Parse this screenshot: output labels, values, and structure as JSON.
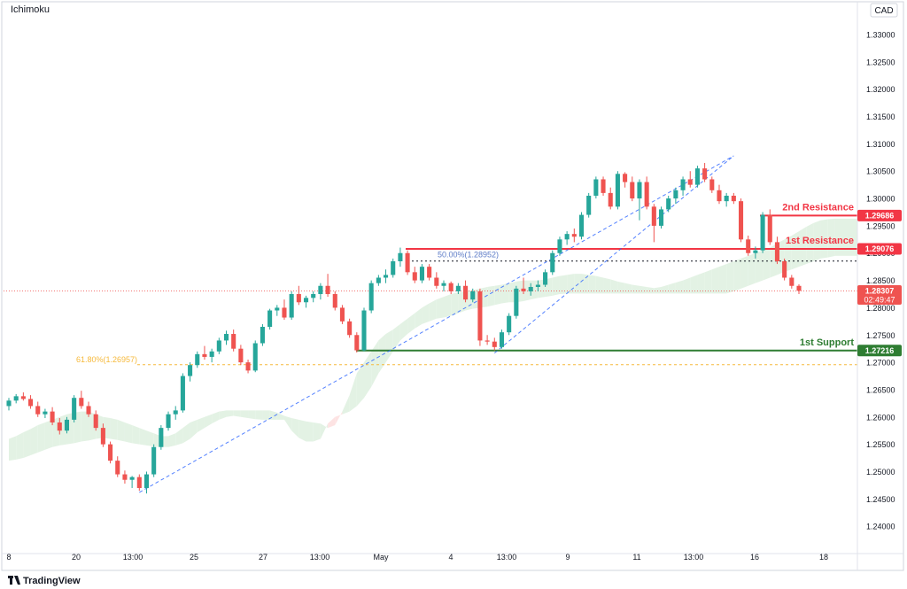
{
  "header": {
    "indicator": "Ichimoku",
    "currency": "CAD"
  },
  "footer": {
    "brand": "TradingView"
  },
  "colors": {
    "up": "#26a69a",
    "down": "#ef5350",
    "resistance": "#f23645",
    "support": "#2e7d32",
    "fib": "#f6b93b",
    "trend": "#2962ff",
    "cloud_bull": "#e3f2e4",
    "cloud_bear": "#fde3e3"
  },
  "chart_data": {
    "type": "candlestick",
    "y_axis": {
      "range": [
        1.235,
        1.336
      ],
      "ticks": [
        "1.33000",
        "1.32500",
        "1.32000",
        "1.31500",
        "1.31000",
        "1.30500",
        "1.30000",
        "1.29500",
        "1.29000",
        "1.28500",
        "1.28000",
        "1.27500",
        "1.27000",
        "1.26500",
        "1.26000",
        "1.25500",
        "1.25000",
        "1.24500",
        "1.24000"
      ]
    },
    "x_axis": {
      "ticks": [
        "8",
        "20",
        "13:00",
        "25",
        "27",
        "13:00",
        "May",
        "4",
        "13:00",
        "9",
        "11",
        "13:00",
        "16",
        "18"
      ]
    },
    "levels": {
      "resistance_2": {
        "label": "2nd Resistance",
        "price": "1.29686"
      },
      "resistance_1": {
        "label": "1st Resistance",
        "price": "1.29076"
      },
      "support_1": {
        "label": "1st Support",
        "price": "1.27216"
      },
      "fib_50": {
        "label": "50.00%(1.28952)",
        "price": 1.28952
      },
      "fib_618": {
        "label": "61.80%(1.26957)",
        "price": 1.26957
      }
    },
    "current_price": {
      "price": "1.28307",
      "countdown": "02:49:47"
    },
    "candles": [
      [
        1.262,
        1.2635,
        1.2612,
        1.263
      ],
      [
        1.263,
        1.2642,
        1.2625,
        1.2638
      ],
      [
        1.2638,
        1.2645,
        1.263,
        1.2633
      ],
      [
        1.2633,
        1.264,
        1.2615,
        1.262
      ],
      [
        1.262,
        1.2628,
        1.26,
        1.2605
      ],
      [
        1.2605,
        1.2615,
        1.2598,
        1.261
      ],
      [
        1.261,
        1.2618,
        1.2585,
        1.259
      ],
      [
        1.259,
        1.2598,
        1.2568,
        1.2575
      ],
      [
        1.2575,
        1.26,
        1.257,
        1.2595
      ],
      [
        1.2595,
        1.264,
        1.259,
        1.2635
      ],
      [
        1.2635,
        1.2648,
        1.2615,
        1.262
      ],
      [
        1.262,
        1.2628,
        1.26,
        1.2605
      ],
      [
        1.2605,
        1.2612,
        1.2575,
        1.258
      ],
      [
        1.258,
        1.2588,
        1.2545,
        1.255
      ],
      [
        1.255,
        1.2555,
        1.2515,
        1.252
      ],
      [
        1.252,
        1.2528,
        1.249,
        1.2495
      ],
      [
        1.2495,
        1.2502,
        1.2478,
        1.2485
      ],
      [
        1.2485,
        1.2492,
        1.247,
        1.249
      ],
      [
        1.249,
        1.2495,
        1.2465,
        1.247
      ],
      [
        1.247,
        1.25,
        1.246,
        1.2495
      ],
      [
        1.2495,
        1.255,
        1.249,
        1.2545
      ],
      [
        1.2545,
        1.2585,
        1.254,
        1.258
      ],
      [
        1.258,
        1.261,
        1.2575,
        1.2605
      ],
      [
        1.2605,
        1.262,
        1.2595,
        1.2612
      ],
      [
        1.2612,
        1.268,
        1.2608,
        1.2675
      ],
      [
        1.2675,
        1.27,
        1.2665,
        1.2695
      ],
      [
        1.2695,
        1.272,
        1.269,
        1.2715
      ],
      [
        1.2715,
        1.273,
        1.2705,
        1.271
      ],
      [
        1.271,
        1.2725,
        1.27,
        1.272
      ],
      [
        1.272,
        1.2745,
        1.2715,
        1.274
      ],
      [
        1.274,
        1.2758,
        1.2732,
        1.2752
      ],
      [
        1.2752,
        1.276,
        1.272,
        1.2725
      ],
      [
        1.2725,
        1.2732,
        1.2695,
        1.27
      ],
      [
        1.27,
        1.2705,
        1.268,
        1.2685
      ],
      [
        1.2685,
        1.274,
        1.2682,
        1.2735
      ],
      [
        1.2735,
        1.277,
        1.273,
        1.2765
      ],
      [
        1.2765,
        1.2798,
        1.276,
        1.2795
      ],
      [
        1.2795,
        1.2805,
        1.2785,
        1.28
      ],
      [
        1.28,
        1.2815,
        1.2778,
        1.2782
      ],
      [
        1.2782,
        1.283,
        1.2778,
        1.2825
      ],
      [
        1.2825,
        1.284,
        1.2805,
        1.281
      ],
      [
        1.281,
        1.2822,
        1.28,
        1.2818
      ],
      [
        1.2818,
        1.283,
        1.281,
        1.2825
      ],
      [
        1.2825,
        1.2845,
        1.2815,
        1.284
      ],
      [
        1.284,
        1.2862,
        1.282,
        1.2825
      ],
      [
        1.2825,
        1.283,
        1.2795,
        1.28
      ],
      [
        1.28,
        1.2805,
        1.277,
        1.2775
      ],
      [
        1.2775,
        1.278,
        1.2745,
        1.275
      ],
      [
        1.275,
        1.2755,
        1.2718,
        1.2722
      ],
      [
        1.2722,
        1.28,
        1.272,
        1.2795
      ],
      [
        1.2795,
        1.285,
        1.279,
        1.2845
      ],
      [
        1.2845,
        1.286,
        1.284,
        1.2855
      ],
      [
        1.2855,
        1.287,
        1.2845,
        1.286
      ],
      [
        1.286,
        1.289,
        1.2855,
        1.2885
      ],
      [
        1.2885,
        1.291,
        1.2875,
        1.29
      ],
      [
        1.29,
        1.2905,
        1.286,
        1.2865
      ],
      [
        1.2865,
        1.2875,
        1.2845,
        1.285
      ],
      [
        1.285,
        1.288,
        1.2845,
        1.2875
      ],
      [
        1.2875,
        1.288,
        1.285,
        1.2855
      ],
      [
        1.2855,
        1.2865,
        1.2835,
        1.284
      ],
      [
        1.284,
        1.285,
        1.283,
        1.2845
      ],
      [
        1.2845,
        1.2848,
        1.2825,
        1.283
      ],
      [
        1.283,
        1.2845,
        1.2825,
        1.284
      ],
      [
        1.284,
        1.285,
        1.281,
        1.2815
      ],
      [
        1.2815,
        1.2835,
        1.281,
        1.283
      ],
      [
        1.283,
        1.2835,
        1.273,
        1.274
      ],
      [
        1.274,
        1.275,
        1.2732,
        1.2738
      ],
      [
        1.2738,
        1.2745,
        1.2722,
        1.2728
      ],
      [
        1.2728,
        1.276,
        1.2725,
        1.2755
      ],
      [
        1.2755,
        1.279,
        1.275,
        1.2785
      ],
      [
        1.2785,
        1.284,
        1.278,
        1.2835
      ],
      [
        1.2835,
        1.2855,
        1.2825,
        1.283
      ],
      [
        1.283,
        1.2845,
        1.2822,
        1.2838
      ],
      [
        1.2838,
        1.285,
        1.283,
        1.2842
      ],
      [
        1.2842,
        1.287,
        1.2838,
        1.2865
      ],
      [
        1.2865,
        1.2905,
        1.286,
        1.29
      ],
      [
        1.29,
        1.293,
        1.2895,
        1.2925
      ],
      [
        1.2925,
        1.294,
        1.2915,
        1.2935
      ],
      [
        1.2935,
        1.2945,
        1.292,
        1.293
      ],
      [
        1.293,
        1.2975,
        1.2925,
        1.297
      ],
      [
        1.297,
        1.301,
        1.2965,
        1.3005
      ],
      [
        1.3005,
        1.304,
        1.3,
        1.3035
      ],
      [
        1.3035,
        1.304,
        1.3005,
        1.301
      ],
      [
        1.301,
        1.302,
        1.298,
        1.2985
      ],
      [
        1.2985,
        1.305,
        1.298,
        1.3045
      ],
      [
        1.3045,
        1.3048,
        1.302,
        1.303
      ],
      [
        1.303,
        1.304,
        1.2995,
        1.3
      ],
      [
        1.3,
        1.3035,
        1.296,
        1.303
      ],
      [
        1.303,
        1.304,
        1.298,
        1.2985
      ],
      [
        1.2985,
        1.299,
        1.292,
        1.295
      ],
      [
        1.295,
        1.2985,
        1.2945,
        1.298
      ],
      [
        1.298,
        1.3005,
        1.2975,
        1.3
      ],
      [
        1.3,
        1.302,
        1.299,
        1.3015
      ],
      [
        1.3015,
        1.304,
        1.3005,
        1.3035
      ],
      [
        1.3035,
        1.305,
        1.302,
        1.3025
      ],
      [
        1.3025,
        1.306,
        1.302,
        1.3055
      ],
      [
        1.3055,
        1.3065,
        1.303,
        1.3035
      ],
      [
        1.3035,
        1.304,
        1.301,
        1.3015
      ],
      [
        1.3015,
        1.3025,
        1.299,
        1.2995
      ],
      [
        1.2995,
        1.301,
        1.2985,
        1.3005
      ],
      [
        1.3005,
        1.301,
        1.299,
        1.2995
      ],
      [
        1.2995,
        1.3,
        1.292,
        1.2925
      ],
      [
        1.2925,
        1.2932,
        1.2895,
        1.29
      ],
      [
        1.29,
        1.2912,
        1.289,
        1.2905
      ],
      [
        1.2905,
        1.2975,
        1.29,
        1.297
      ],
      [
        1.297,
        1.298,
        1.2915,
        1.292
      ],
      [
        1.292,
        1.293,
        1.288,
        1.2885
      ],
      [
        1.2885,
        1.289,
        1.285,
        1.2855
      ],
      [
        1.2855,
        1.286,
        1.2835,
        1.284
      ],
      [
        1.284,
        1.2843,
        1.2825,
        1.2831
      ]
    ],
    "cloud": {
      "start_index": 0,
      "span_a": [
        1.256,
        1.2565,
        1.2572,
        1.2578,
        1.2585,
        1.259,
        1.2595,
        1.26,
        1.2605,
        1.2608,
        1.261,
        1.261,
        1.2605,
        1.26,
        1.2598,
        1.2595,
        1.259,
        1.2585,
        1.258,
        1.2575,
        1.257,
        1.2565,
        1.2565,
        1.257,
        1.258,
        1.259,
        1.2595,
        1.26,
        1.2605,
        1.261,
        1.2612,
        1.2612,
        1.2612,
        1.2612,
        1.2612,
        1.2612,
        1.2612,
        1.2608,
        1.2602,
        1.2598,
        1.2595,
        1.2592,
        1.259,
        1.2588,
        1.258,
        1.2585,
        1.261,
        1.264,
        1.268,
        1.27,
        1.272,
        1.274,
        1.2752,
        1.276,
        1.277,
        1.278,
        1.279,
        1.28,
        1.2808,
        1.2815,
        1.282,
        1.2825,
        1.2828,
        1.283,
        1.2832,
        1.2835,
        1.2838,
        1.284,
        1.2842,
        1.2845,
        1.2848,
        1.285,
        1.285,
        1.285,
        1.2852,
        1.2855,
        1.2858,
        1.286,
        1.2862,
        1.2862,
        1.286,
        1.2858,
        1.2855,
        1.2852,
        1.2848,
        1.2845,
        1.2842,
        1.284,
        1.2838,
        1.2836,
        1.2838,
        1.2842,
        1.2846,
        1.285,
        1.2855,
        1.286,
        1.2865,
        1.287,
        1.2875,
        1.288,
        1.2885,
        1.289,
        1.2895,
        1.29,
        1.2905,
        1.291,
        1.2918,
        1.2925,
        1.2932,
        1.294,
        1.2948,
        1.2955,
        1.296,
        1.2962,
        1.2963
      ],
      "span_b": [
        1.252,
        1.2522,
        1.2525,
        1.253,
        1.2535,
        1.254,
        1.2545,
        1.2548,
        1.255,
        1.2552,
        1.2555,
        1.2557,
        1.256,
        1.2562,
        1.256,
        1.2558,
        1.2555,
        1.2552,
        1.255,
        1.2548,
        1.2546,
        1.2545,
        1.2545,
        1.2548,
        1.2552,
        1.256,
        1.2572,
        1.258,
        1.2588,
        1.2595,
        1.26,
        1.2602,
        1.26,
        1.2598,
        1.2596,
        1.2595,
        1.2595,
        1.2595,
        1.2595,
        1.2575,
        1.2562,
        1.2555,
        1.2555,
        1.256,
        1.2588,
        1.26,
        1.2605,
        1.261,
        1.262,
        1.2635,
        1.2655,
        1.268,
        1.27,
        1.272,
        1.274,
        1.2752,
        1.2762,
        1.277,
        1.2775,
        1.278,
        1.2782,
        1.2785,
        1.279,
        1.2795,
        1.2798,
        1.28,
        1.2802,
        1.2805,
        1.2808,
        1.281,
        1.281,
        1.2812,
        1.2815,
        1.2818,
        1.282,
        1.2822,
        1.2825,
        1.2826,
        1.2826,
        1.2826,
        1.2826,
        1.2826,
        1.2826,
        1.2826,
        1.2826,
        1.2826,
        1.2826,
        1.2826,
        1.2826,
        1.2826,
        1.2826,
        1.2826,
        1.2826,
        1.2826,
        1.2826,
        1.2826,
        1.2826,
        1.2826,
        1.2826,
        1.2826,
        1.283,
        1.2835,
        1.284,
        1.2845,
        1.285,
        1.2855,
        1.286,
        1.2866,
        1.287,
        1.2875,
        1.288,
        1.2885,
        1.289,
        1.2892,
        1.2895
      ]
    }
  }
}
